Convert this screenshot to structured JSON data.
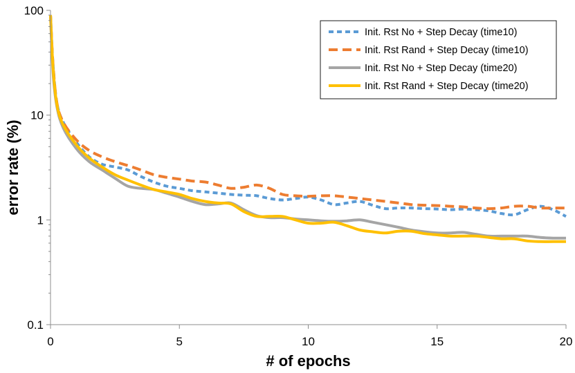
{
  "chart_data": {
    "type": "line",
    "xlabel": "# of epochs",
    "ylabel": "error rate (%)",
    "xlim": [
      0,
      20
    ],
    "ylim": [
      0.1,
      100
    ],
    "yscale": "log",
    "x_ticks": [
      "0",
      "5",
      "10",
      "15",
      "20"
    ],
    "y_ticks": [
      "0.1",
      "1",
      "10",
      "100"
    ],
    "grid": false,
    "legend_position": "top-right",
    "series": [
      {
        "name": "Init. Rst No + Step Decay (time10)",
        "color": "#5b9bd5",
        "style": "dotted",
        "x": [
          0,
          0.1,
          0.25,
          0.5,
          1,
          1.5,
          2,
          2.5,
          3,
          3.5,
          4,
          4.5,
          5,
          5.5,
          6,
          6.5,
          7,
          7.5,
          8,
          8.5,
          9,
          9.5,
          10,
          10.5,
          11,
          11.5,
          12,
          12.5,
          13,
          13.5,
          14,
          14.5,
          15,
          15.5,
          16,
          16.5,
          17,
          17.5,
          18,
          18.5,
          19,
          19.5,
          20
        ],
        "y": [
          90,
          30,
          13,
          8.5,
          5.5,
          4.0,
          3.4,
          3.2,
          3.0,
          2.6,
          2.3,
          2.1,
          2.0,
          1.9,
          1.85,
          1.8,
          1.75,
          1.72,
          1.7,
          1.6,
          1.55,
          1.6,
          1.65,
          1.55,
          1.4,
          1.45,
          1.5,
          1.38,
          1.28,
          1.3,
          1.3,
          1.28,
          1.27,
          1.25,
          1.27,
          1.25,
          1.22,
          1.15,
          1.12,
          1.25,
          1.35,
          1.25,
          1.08
        ]
      },
      {
        "name": "Init. Rst Rand + Step Decay (time10)",
        "color": "#ed7d31",
        "style": "dashed",
        "x": [
          0,
          0.1,
          0.25,
          0.5,
          1,
          1.5,
          2,
          2.5,
          3,
          3.5,
          4,
          4.5,
          5,
          5.5,
          6,
          6.5,
          7,
          7.5,
          8,
          8.5,
          9,
          9.5,
          10,
          10.5,
          11,
          11.5,
          12,
          12.5,
          13,
          13.5,
          14,
          14.5,
          15,
          15.5,
          16,
          16.5,
          17,
          17.5,
          18,
          18.5,
          19,
          19.5,
          20
        ],
        "y": [
          90,
          30,
          13,
          8.5,
          5.8,
          4.6,
          4.0,
          3.6,
          3.3,
          3.0,
          2.7,
          2.55,
          2.45,
          2.35,
          2.3,
          2.15,
          2.0,
          2.05,
          2.15,
          2.0,
          1.75,
          1.7,
          1.68,
          1.7,
          1.7,
          1.65,
          1.6,
          1.55,
          1.5,
          1.45,
          1.4,
          1.38,
          1.37,
          1.35,
          1.33,
          1.3,
          1.28,
          1.3,
          1.35,
          1.35,
          1.3,
          1.3,
          1.3
        ]
      },
      {
        "name": "Init. Rst No + Step Decay (time20)",
        "color": "#a5a5a5",
        "style": "solid",
        "x": [
          0,
          0.1,
          0.25,
          0.5,
          1,
          1.5,
          2,
          2.5,
          3,
          3.5,
          4,
          4.5,
          5,
          5.5,
          6,
          6.5,
          7,
          7.5,
          8,
          8.5,
          9,
          9.5,
          10,
          10.5,
          11,
          11.5,
          12,
          12.5,
          13,
          13.5,
          14,
          14.5,
          15,
          15.5,
          16,
          16.5,
          17,
          17.5,
          18,
          18.5,
          19,
          19.5,
          20
        ],
        "y": [
          90,
          25,
          12,
          7.5,
          4.8,
          3.6,
          3.0,
          2.5,
          2.1,
          2.0,
          1.95,
          1.8,
          1.65,
          1.5,
          1.4,
          1.42,
          1.45,
          1.25,
          1.1,
          1.05,
          1.05,
          1.02,
          1.0,
          0.98,
          0.97,
          0.98,
          1.0,
          0.95,
          0.9,
          0.85,
          0.8,
          0.77,
          0.75,
          0.75,
          0.76,
          0.73,
          0.7,
          0.7,
          0.7,
          0.7,
          0.68,
          0.67,
          0.67
        ]
      },
      {
        "name": "Init. Rst Rand + Step Decay (time20)",
        "color": "#ffc000",
        "style": "solid",
        "x": [
          0,
          0.1,
          0.25,
          0.5,
          1,
          1.5,
          2,
          2.5,
          3,
          3.5,
          4,
          4.5,
          5,
          5.5,
          6,
          6.5,
          7,
          7.5,
          8,
          8.5,
          9,
          9.5,
          10,
          10.5,
          11,
          11.5,
          12,
          12.5,
          13,
          13.5,
          14,
          14.5,
          15,
          15.5,
          16,
          16.5,
          17,
          17.5,
          18,
          18.5,
          19,
          19.5,
          20
        ],
        "y": [
          90,
          28,
          12.5,
          8.0,
          5.2,
          3.9,
          3.2,
          2.7,
          2.4,
          2.15,
          1.95,
          1.85,
          1.75,
          1.6,
          1.5,
          1.45,
          1.42,
          1.2,
          1.08,
          1.08,
          1.08,
          1.0,
          0.93,
          0.93,
          0.95,
          0.88,
          0.8,
          0.77,
          0.75,
          0.78,
          0.78,
          0.74,
          0.72,
          0.7,
          0.7,
          0.7,
          0.68,
          0.66,
          0.66,
          0.63,
          0.62,
          0.62,
          0.62
        ]
      }
    ]
  }
}
